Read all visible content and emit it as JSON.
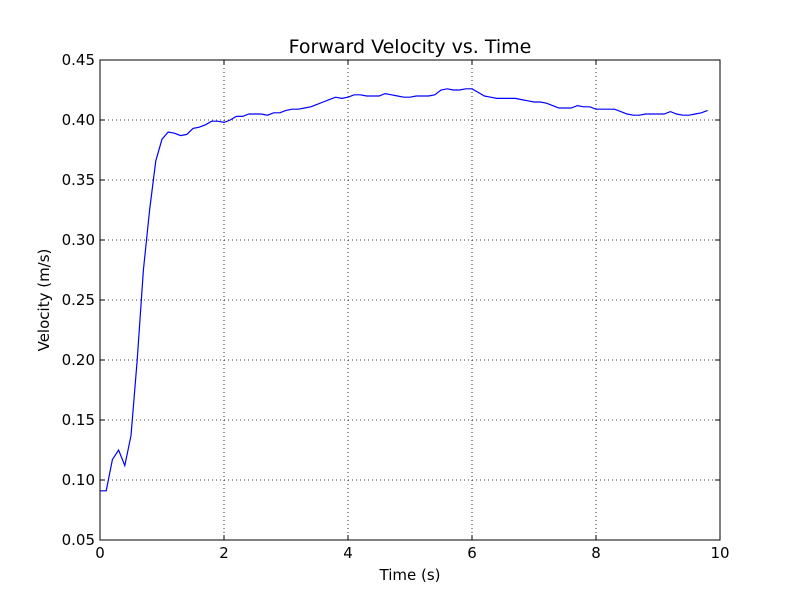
{
  "chart_data": {
    "type": "line",
    "title": "Forward Velocity vs. Time",
    "xlabel": "Time (s)",
    "ylabel": "Velocity (m/s)",
    "xlim": [
      0,
      10
    ],
    "ylim": [
      0.05,
      0.45
    ],
    "xticks": [
      0,
      2,
      4,
      6,
      8,
      10
    ],
    "xtick_labels": [
      "0",
      "2",
      "4",
      "6",
      "8",
      "10"
    ],
    "yticks": [
      0.05,
      0.1,
      0.15,
      0.2,
      0.25,
      0.3,
      0.35,
      0.4,
      0.45
    ],
    "ytick_labels": [
      "0.05",
      "0.10",
      "0.15",
      "0.20",
      "0.25",
      "0.30",
      "0.35",
      "0.40",
      "0.45"
    ],
    "grid": true,
    "series": [
      {
        "color": "#0000ff",
        "x": [
          0.0,
          0.1,
          0.2,
          0.3,
          0.4,
          0.5,
          0.6,
          0.7,
          0.8,
          0.9,
          1.0,
          1.1,
          1.2,
          1.3,
          1.4,
          1.5,
          1.6,
          1.7,
          1.8,
          1.9,
          2.0,
          2.1,
          2.2,
          2.3,
          2.4,
          2.5,
          2.6,
          2.7,
          2.8,
          2.9,
          3.0,
          3.1,
          3.2,
          3.3,
          3.4,
          3.5,
          3.6,
          3.7,
          3.8,
          3.9,
          4.0,
          4.1,
          4.2,
          4.3,
          4.4,
          4.5,
          4.6,
          4.7,
          4.8,
          4.9,
          5.0,
          5.1,
          5.2,
          5.3,
          5.4,
          5.5,
          5.6,
          5.7,
          5.8,
          5.9,
          6.0,
          6.1,
          6.2,
          6.3,
          6.4,
          6.5,
          6.6,
          6.7,
          6.8,
          6.9,
          7.0,
          7.1,
          7.2,
          7.3,
          7.4,
          7.5,
          7.6,
          7.7,
          7.8,
          7.9,
          8.0,
          8.1,
          8.2,
          8.3,
          8.4,
          8.5,
          8.6,
          8.7,
          8.8,
          8.9,
          9.0,
          9.1,
          9.2,
          9.3,
          9.4,
          9.5,
          9.6,
          9.7,
          9.8
        ],
        "y": [
          0.091,
          0.091,
          0.117,
          0.125,
          0.112,
          0.137,
          0.2,
          0.275,
          0.325,
          0.366,
          0.384,
          0.39,
          0.389,
          0.387,
          0.388,
          0.393,
          0.394,
          0.396,
          0.399,
          0.399,
          0.398,
          0.4,
          0.403,
          0.403,
          0.405,
          0.405,
          0.405,
          0.404,
          0.406,
          0.406,
          0.408,
          0.409,
          0.409,
          0.41,
          0.411,
          0.413,
          0.415,
          0.417,
          0.419,
          0.418,
          0.419,
          0.421,
          0.421,
          0.42,
          0.42,
          0.42,
          0.422,
          0.421,
          0.42,
          0.419,
          0.419,
          0.42,
          0.42,
          0.42,
          0.421,
          0.425,
          0.426,
          0.425,
          0.425,
          0.426,
          0.426,
          0.423,
          0.42,
          0.419,
          0.418,
          0.418,
          0.418,
          0.418,
          0.417,
          0.416,
          0.415,
          0.415,
          0.414,
          0.412,
          0.41,
          0.41,
          0.41,
          0.412,
          0.411,
          0.411,
          0.409,
          0.409,
          0.409,
          0.409,
          0.407,
          0.405,
          0.404,
          0.404,
          0.405,
          0.405,
          0.405,
          0.405,
          0.407,
          0.405,
          0.404,
          0.404,
          0.405,
          0.406,
          0.408
        ]
      }
    ]
  }
}
